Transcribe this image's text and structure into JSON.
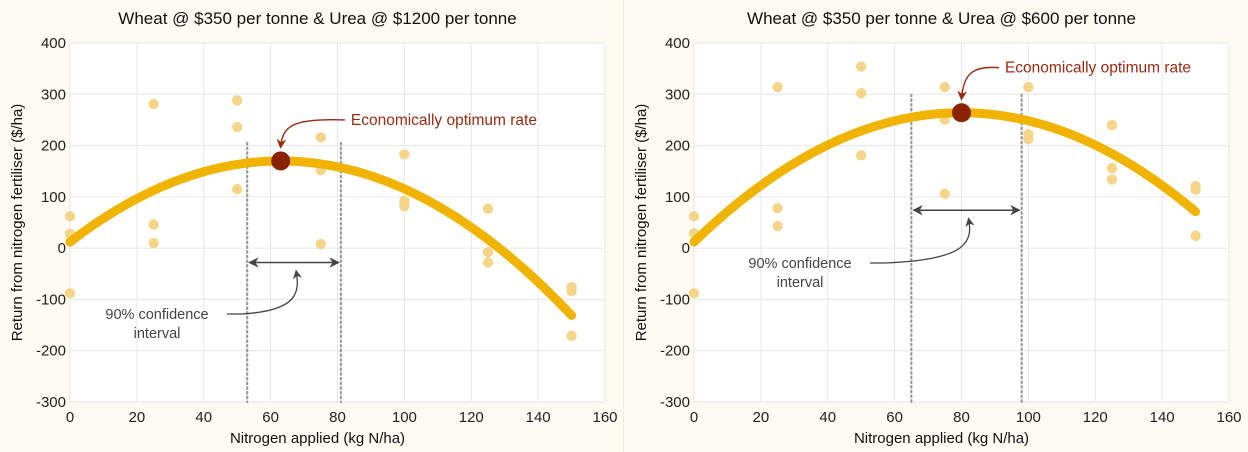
{
  "figure": {
    "background_color": "#fdfaf2",
    "plot_background": "#ffffff",
    "gridline_color": "#e6e6e6",
    "point_color": "#f5d58a",
    "curve_color": "#f0b400",
    "optimum_color": "#8b2200",
    "annotation_color": "#9a2a12",
    "confidence_color": "#555555"
  },
  "chart_data": [
    {
      "type": "scatter",
      "title": "Wheat @ $350 per tonne & Urea @ $1200 per tonne",
      "xlabel": "Nitrogen applied (kg N/ha)",
      "ylabel": "Return from nitrogen fertiliser ($/ha)",
      "xlim": [
        0,
        160
      ],
      "ylim": [
        -300,
        400
      ],
      "x_ticks": [
        0,
        20,
        40,
        60,
        80,
        100,
        120,
        140,
        160
      ],
      "y_ticks": [
        -300,
        -200,
        -100,
        0,
        100,
        200,
        300,
        400
      ],
      "x_tick_labels": [
        "0",
        "20",
        "40",
        "60",
        "80",
        "100",
        "120",
        "140",
        "160"
      ],
      "y_tick_labels": [
        "-300",
        "-200",
        "-100",
        "0",
        "100",
        "200",
        "300",
        "400"
      ],
      "grid": true,
      "points": [
        {
          "x": 0,
          "y": 62
        },
        {
          "x": 0,
          "y": 28
        },
        {
          "x": 0,
          "y": -88
        },
        {
          "x": 25,
          "y": 281
        },
        {
          "x": 25,
          "y": 46
        },
        {
          "x": 25,
          "y": 10
        },
        {
          "x": 50,
          "y": 288
        },
        {
          "x": 50,
          "y": 236
        },
        {
          "x": 50,
          "y": 115
        },
        {
          "x": 75,
          "y": 216
        },
        {
          "x": 75,
          "y": 152
        },
        {
          "x": 75,
          "y": 8
        },
        {
          "x": 100,
          "y": 183
        },
        {
          "x": 100,
          "y": 92
        },
        {
          "x": 100,
          "y": 82
        },
        {
          "x": 125,
          "y": 77
        },
        {
          "x": 125,
          "y": -8
        },
        {
          "x": 125,
          "y": -28
        },
        {
          "x": 150,
          "y": -76
        },
        {
          "x": 150,
          "y": -84
        },
        {
          "x": 150,
          "y": -171
        }
      ],
      "fitted_curve": {
        "name": "Fitted response",
        "x_range": [
          0,
          150
        ],
        "y_start": 12,
        "optimum": {
          "x": 63,
          "y": 170
        },
        "y_end": -120
      },
      "optimum_label": "Economically optimum rate",
      "confidence_interval": {
        "lower": 53,
        "upper": 81,
        "arrow_y": -28
      },
      "confidence_label": [
        "90% confidence",
        "interval"
      ]
    },
    {
      "type": "scatter",
      "title": "Wheat @ $350 per tonne & Urea @ $600 per tonne",
      "xlabel": "Nitrogen applied (kg N/ha)",
      "ylabel": "Return from nitrogen fertiliser ($/ha)",
      "xlim": [
        0,
        160
      ],
      "ylim": [
        -300,
        400
      ],
      "x_ticks": [
        0,
        20,
        40,
        60,
        80,
        100,
        120,
        140,
        160
      ],
      "y_ticks": [
        -300,
        -200,
        -100,
        0,
        100,
        200,
        300,
        400
      ],
      "x_tick_labels": [
        "0",
        "20",
        "40",
        "60",
        "80",
        "100",
        "120",
        "140",
        "160"
      ],
      "y_tick_labels": [
        "-300",
        "-200",
        "-100",
        "0",
        "100",
        "200",
        "300",
        "400"
      ],
      "grid": true,
      "points": [
        {
          "x": 0,
          "y": 62
        },
        {
          "x": 0,
          "y": 29
        },
        {
          "x": 0,
          "y": -88
        },
        {
          "x": 25,
          "y": 314
        },
        {
          "x": 25,
          "y": 78
        },
        {
          "x": 25,
          "y": 43
        },
        {
          "x": 50,
          "y": 354
        },
        {
          "x": 50,
          "y": 302
        },
        {
          "x": 50,
          "y": 181
        },
        {
          "x": 75,
          "y": 314
        },
        {
          "x": 75,
          "y": 251
        },
        {
          "x": 75,
          "y": 106
        },
        {
          "x": 100,
          "y": 314
        },
        {
          "x": 100,
          "y": 222
        },
        {
          "x": 100,
          "y": 213
        },
        {
          "x": 125,
          "y": 240
        },
        {
          "x": 125,
          "y": 156
        },
        {
          "x": 125,
          "y": 134
        },
        {
          "x": 150,
          "y": 121
        },
        {
          "x": 150,
          "y": 114
        },
        {
          "x": 150,
          "y": 24
        }
      ],
      "fitted_curve": {
        "name": "Fitted response",
        "x_range": [
          0,
          150
        ],
        "y_start": 12,
        "optimum": {
          "x": 80,
          "y": 264
        },
        "y_end": 76
      },
      "optimum_label": "Economically optimum rate",
      "confidence_interval": {
        "lower": 65,
        "upper": 98,
        "arrow_y": 74
      },
      "confidence_label": [
        "90% confidence",
        "interval"
      ]
    }
  ]
}
